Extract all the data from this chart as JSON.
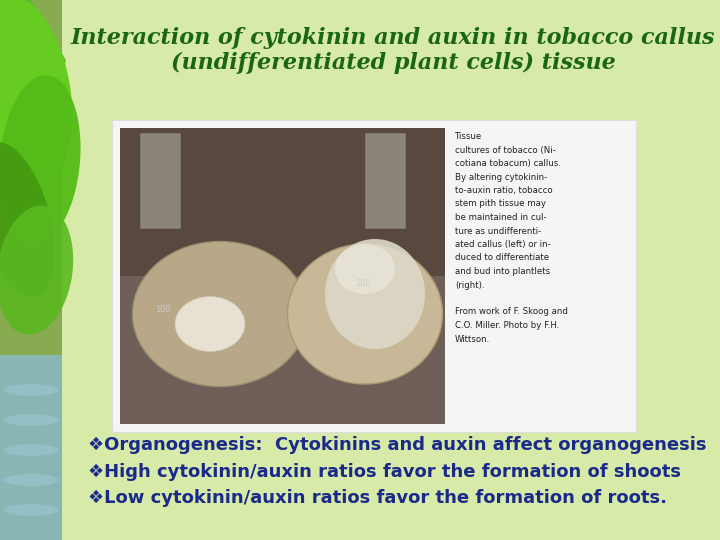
{
  "title_line1": "Interaction of cytokinin and auxin in tobacco callus",
  "title_line2": "(undifferentiated plant cells) tissue",
  "title_color": "#1a6614",
  "title_fontsize": 16,
  "slide_bg": "#cfe0a0",
  "main_bg": "#d8eaa8",
  "left_strip_color": "#a8c870",
  "bullet_lines": [
    "❖Organogenesis:  Cytokinins and auxin affect organogenesis",
    "❖High cytokinin/auxin ratios favor the formation of shoots",
    "❖Low cytokinin/auxin ratios favor the formation of roots."
  ],
  "bullet_color": "#1a2a8a",
  "bullet_fontsize": 13,
  "caption_lines": [
    "Tissue",
    "cultures of tobacco (Ni-",
    "cotiana tobacum) callus.",
    "By altering cytokinin-",
    "to-auxin ratio, tobacco",
    "stem pith tissue may",
    "be maintained in cul-",
    "ture as undifferenti-",
    "ated callus (left) or in-",
    "duced to differentiate",
    "and bud into plantlets",
    "(right).",
    "",
    "From work of F. Skoog and",
    "C.O. Miller. Photo by F.H.",
    "Wittson."
  ]
}
